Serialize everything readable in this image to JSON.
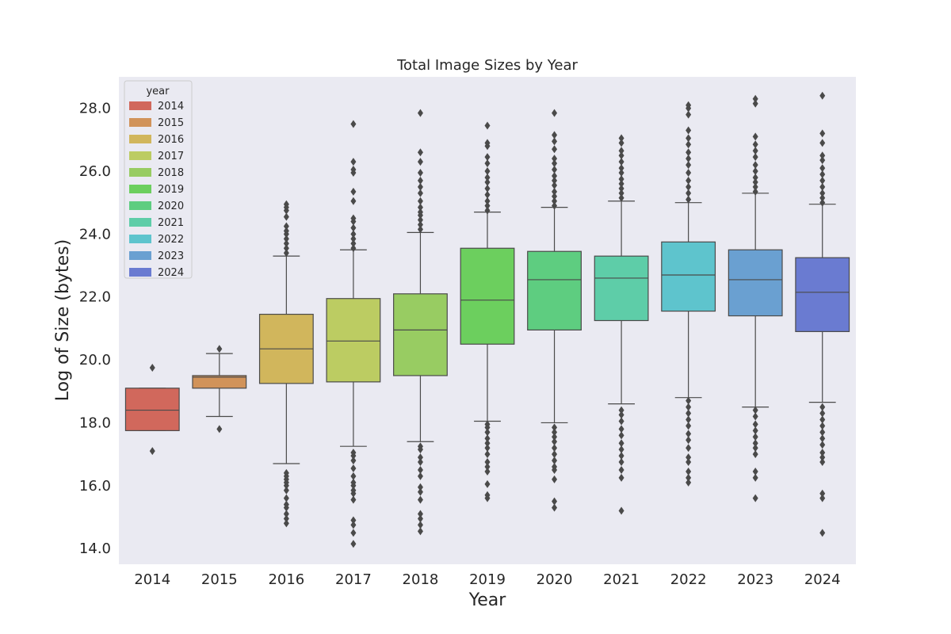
{
  "chart_data": {
    "type": "box",
    "title": "Total Image Sizes by Year",
    "xlabel": "Year",
    "ylabel": "Log of Size (bytes)",
    "ylim": [
      13.5,
      29.0
    ],
    "yticks": [
      "14.0",
      "16.0",
      "18.0",
      "20.0",
      "22.0",
      "24.0",
      "26.0",
      "28.0"
    ],
    "grid": false,
    "legend_title": "year",
    "legend_position": "top-left",
    "categories": [
      "2014",
      "2015",
      "2016",
      "2017",
      "2018",
      "2019",
      "2020",
      "2021",
      "2022",
      "2023",
      "2024"
    ],
    "series": [
      {
        "name": "2014",
        "color": "#d1685c",
        "whisker_low": 17.75,
        "q1": 17.75,
        "median": 18.4,
        "q3": 19.1,
        "whisker_high": 19.1,
        "outliers": [
          17.1,
          19.75
        ]
      },
      {
        "name": "2015",
        "color": "#d1935a",
        "whisker_low": 18.2,
        "q1": 19.1,
        "median": 19.45,
        "q3": 19.5,
        "whisker_high": 20.2,
        "outliers": [
          17.8,
          20.35
        ]
      },
      {
        "name": "2016",
        "color": "#d1b65c",
        "whisker_low": 16.7,
        "q1": 19.25,
        "median": 20.35,
        "q3": 21.45,
        "whisker_high": 23.3,
        "outliers": [
          14.8,
          14.95,
          15.1,
          15.3,
          15.4,
          15.6,
          15.85,
          16.0,
          16.1,
          16.2,
          16.3,
          16.4,
          23.4,
          23.55,
          23.7,
          23.85,
          24.0,
          24.1,
          24.25,
          24.55,
          24.75,
          24.85,
          24.95
        ]
      },
      {
        "name": "2017",
        "color": "#bccc62",
        "whisker_low": 17.25,
        "q1": 19.3,
        "median": 20.6,
        "q3": 21.95,
        "whisker_high": 23.5,
        "outliers": [
          14.15,
          14.5,
          14.75,
          14.9,
          15.55,
          15.75,
          15.85,
          16.0,
          16.1,
          16.3,
          16.55,
          16.8,
          16.95,
          17.05,
          23.55,
          23.7,
          23.85,
          24.0,
          24.2,
          24.4,
          24.5,
          25.05,
          25.35,
          25.95,
          26.05,
          26.3,
          27.5
        ]
      },
      {
        "name": "2018",
        "color": "#98cc62",
        "whisker_low": 17.4,
        "q1": 19.5,
        "median": 20.95,
        "q3": 22.1,
        "whisker_high": 24.05,
        "outliers": [
          14.55,
          14.75,
          14.95,
          15.1,
          15.55,
          15.8,
          15.95,
          16.3,
          16.5,
          16.75,
          16.9,
          17.15,
          17.25,
          24.15,
          24.3,
          24.45,
          24.6,
          24.7,
          24.85,
          25.05,
          25.3,
          25.5,
          25.7,
          25.95,
          26.3,
          26.6,
          27.85
        ]
      },
      {
        "name": "2019",
        "color": "#6ccf5e",
        "whisker_low": 18.05,
        "q1": 20.5,
        "median": 21.9,
        "q3": 23.55,
        "whisker_high": 24.7,
        "outliers": [
          15.6,
          15.7,
          16.05,
          16.45,
          16.6,
          16.75,
          17.0,
          17.2,
          17.35,
          17.5,
          17.7,
          17.85,
          17.95,
          24.75,
          24.9,
          25.05,
          25.25,
          25.45,
          25.65,
          25.8,
          26.0,
          26.25,
          26.45,
          26.8,
          26.9,
          27.45
        ]
      },
      {
        "name": "2020",
        "color": "#5ecd80",
        "whisker_low": 18.0,
        "q1": 20.95,
        "median": 22.55,
        "q3": 23.45,
        "whisker_high": 24.85,
        "outliers": [
          15.3,
          15.5,
          16.2,
          16.5,
          16.6,
          16.8,
          17.0,
          17.2,
          17.4,
          17.55,
          17.7,
          17.85,
          24.9,
          25.05,
          25.2,
          25.35,
          25.55,
          25.7,
          25.85,
          26.05,
          26.25,
          26.4,
          26.7,
          26.95,
          27.15,
          27.85
        ]
      },
      {
        "name": "2021",
        "color": "#5ecda8",
        "whisker_low": 18.6,
        "q1": 21.25,
        "median": 22.6,
        "q3": 23.3,
        "whisker_high": 25.05,
        "outliers": [
          15.2,
          16.25,
          16.5,
          16.75,
          16.95,
          17.15,
          17.35,
          17.6,
          17.8,
          18.05,
          18.25,
          18.4,
          25.15,
          25.3,
          25.45,
          25.6,
          25.75,
          25.95,
          26.1,
          26.3,
          26.5,
          26.65,
          26.9,
          27.05
        ]
      },
      {
        "name": "2022",
        "color": "#5ec4cd",
        "whisker_low": 18.8,
        "q1": 21.55,
        "median": 22.7,
        "q3": 23.75,
        "whisker_high": 25.0,
        "outliers": [
          16.1,
          16.25,
          16.45,
          16.75,
          16.9,
          17.2,
          17.45,
          17.65,
          17.9,
          18.1,
          18.3,
          18.5,
          18.7,
          25.1,
          25.3,
          25.5,
          25.7,
          25.95,
          26.2,
          26.4,
          26.6,
          26.85,
          27.05,
          27.3,
          27.8,
          28.0,
          28.1
        ]
      },
      {
        "name": "2023",
        "color": "#6aa0d1",
        "whisker_low": 18.5,
        "q1": 21.4,
        "median": 22.55,
        "q3": 23.5,
        "whisker_high": 25.3,
        "outliers": [
          15.6,
          16.25,
          16.45,
          17.0,
          17.2,
          17.35,
          17.55,
          17.75,
          17.95,
          18.2,
          18.4,
          25.35,
          25.5,
          25.65,
          25.8,
          26.0,
          26.2,
          26.45,
          26.65,
          26.85,
          27.1,
          28.15,
          28.3
        ]
      },
      {
        "name": "2024",
        "color": "#6a7bd1",
        "whisker_low": 18.65,
        "q1": 20.9,
        "median": 22.15,
        "q3": 23.25,
        "whisker_high": 24.95,
        "outliers": [
          14.5,
          15.6,
          15.75,
          16.75,
          16.9,
          17.05,
          17.3,
          17.5,
          17.7,
          17.9,
          18.1,
          18.3,
          18.5,
          25.0,
          25.15,
          25.3,
          25.5,
          25.7,
          25.9,
          26.1,
          26.35,
          26.5,
          26.9,
          27.2,
          28.4
        ]
      }
    ]
  }
}
